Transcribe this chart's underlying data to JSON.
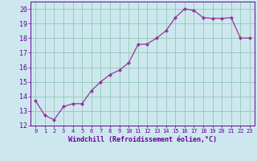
{
  "x": [
    0,
    1,
    2,
    3,
    4,
    5,
    6,
    7,
    8,
    9,
    10,
    11,
    12,
    13,
    14,
    15,
    16,
    17,
    18,
    19,
    20,
    21,
    22,
    23
  ],
  "y": [
    13.7,
    12.7,
    12.4,
    13.3,
    13.5,
    13.5,
    14.4,
    15.0,
    15.5,
    15.8,
    16.3,
    17.55,
    17.6,
    18.0,
    18.5,
    19.4,
    20.0,
    19.9,
    19.4,
    19.35,
    19.35,
    19.4,
    18.0,
    18.0
  ],
  "line_color": "#993399",
  "marker": "D",
  "marker_size": 2,
  "bg_color": "#cce8ee",
  "grid_color": "#99ccbb",
  "xlabel": "Windchill (Refroidissement éolien,°C)",
  "xlabel_color": "#660099",
  "tick_color": "#660099",
  "ylim": [
    12,
    20.5
  ],
  "yticks": [
    12,
    13,
    14,
    15,
    16,
    17,
    18,
    19,
    20
  ],
  "xlim": [
    -0.5,
    23.5
  ]
}
